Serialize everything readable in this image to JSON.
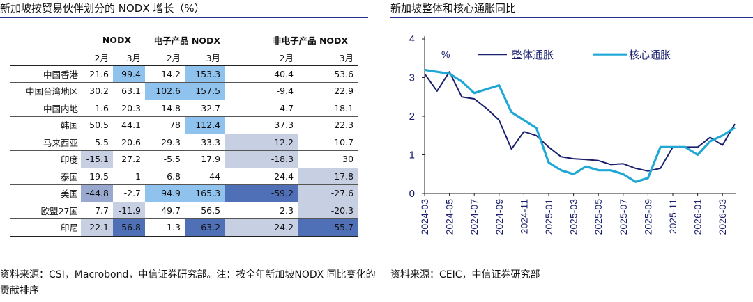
{
  "left": {
    "title": "新加坡按贸易伙伴划分的 NODX 增长（%）",
    "source": "资料来源：CSI，Macrobond，中信证券研究部。注：按全年新加坡NODX 同比变化的贡献排序",
    "groups": [
      "NODX",
      "电子产品 NODX",
      "非电子产品 NODX"
    ],
    "months": [
      "2月",
      "3月",
      "2月",
      "3月",
      "2月",
      "3月"
    ],
    "rows": [
      {
        "name": "中国香港",
        "v": [
          "21.6",
          "99.4",
          "14.2",
          "153.3",
          "40.4",
          "53.6"
        ]
      },
      {
        "name": "中国台湾地区",
        "v": [
          "30.2",
          "63.1",
          "102.6",
          "157.5",
          "-9.4",
          "22.9"
        ]
      },
      {
        "name": "中国内地",
        "v": [
          "-1.6",
          "20.3",
          "14.8",
          "32.7",
          "-4.7",
          "18.1"
        ]
      },
      {
        "name": "韩国",
        "v": [
          "50.5",
          "44.1",
          "78",
          "112.4",
          "37.3",
          "22.3"
        ]
      },
      {
        "name": "马来西亚",
        "v": [
          "5.5",
          "20.6",
          "29.3",
          "33.3",
          "-12.2",
          "10.7"
        ]
      },
      {
        "name": "印度",
        "v": [
          "-15.1",
          "27.2",
          "-5.5",
          "17.9",
          "-18.3",
          "30"
        ]
      },
      {
        "name": "泰国",
        "v": [
          "19.5",
          "-1",
          "6.8",
          "44",
          "24.4",
          "-17.8"
        ]
      },
      {
        "name": "美国",
        "v": [
          "-44.8",
          "-2.7",
          "94.9",
          "165.3",
          "-59.2",
          "-27.6"
        ]
      },
      {
        "name": "欧盟27国",
        "v": [
          "7.7",
          "-11.9",
          "49.7",
          "56.5",
          "2.3",
          "-20.3"
        ]
      },
      {
        "name": "印尼",
        "v": [
          "-22.1",
          "-56.8",
          "1.3",
          "-63.2",
          "-24.2",
          "-55.7"
        ]
      }
    ]
  },
  "right": {
    "title": "新加坡整体和核心通胀同比",
    "source": "资料来源：CEIC，中信证券研究部"
  },
  "chart_data": {
    "type": "line",
    "ylabel": "%",
    "ylim": [
      0,
      4
    ],
    "yticks": [
      0,
      1,
      2,
      3,
      4
    ],
    "xlabels": [
      "2024-03",
      "2024-05",
      "2024-07",
      "2024-09",
      "2024-11",
      "2025-01",
      "2025-03",
      "2025-05",
      "2025-07",
      "2025-09",
      "2025-11",
      "2026-01",
      "2026-03"
    ],
    "legend_position": "top",
    "series": [
      {
        "name": "整体通胀",
        "color": "#1a1f6e",
        "values": [
          3.1,
          2.65,
          3.15,
          2.5,
          2.45,
          2.2,
          1.9,
          1.15,
          1.6,
          1.5,
          1.2,
          0.95,
          0.9,
          0.88,
          0.85,
          0.75,
          0.77,
          0.65,
          0.58,
          0.65,
          1.2,
          1.2,
          1.2,
          1.45,
          1.25,
          1.8
        ]
      },
      {
        "name": "核心通胀",
        "color": "#1fa8d6",
        "values": [
          3.2,
          3.15,
          3.1,
          2.9,
          2.6,
          2.7,
          2.8,
          2.1,
          1.9,
          1.7,
          0.8,
          0.6,
          0.5,
          0.7,
          0.6,
          0.6,
          0.5,
          0.3,
          0.4,
          1.2,
          1.2,
          1.2,
          1.0,
          1.35,
          1.5,
          1.7
        ]
      }
    ]
  },
  "colors": {
    "rule": "#1f2f8c",
    "pos_strong": "#8fc3ee",
    "pos_light": "#d6e8f8",
    "neg_light": "#c7cfe2",
    "neg_mid": "#98a8ce",
    "neg_strong": "#4f6fb6"
  }
}
